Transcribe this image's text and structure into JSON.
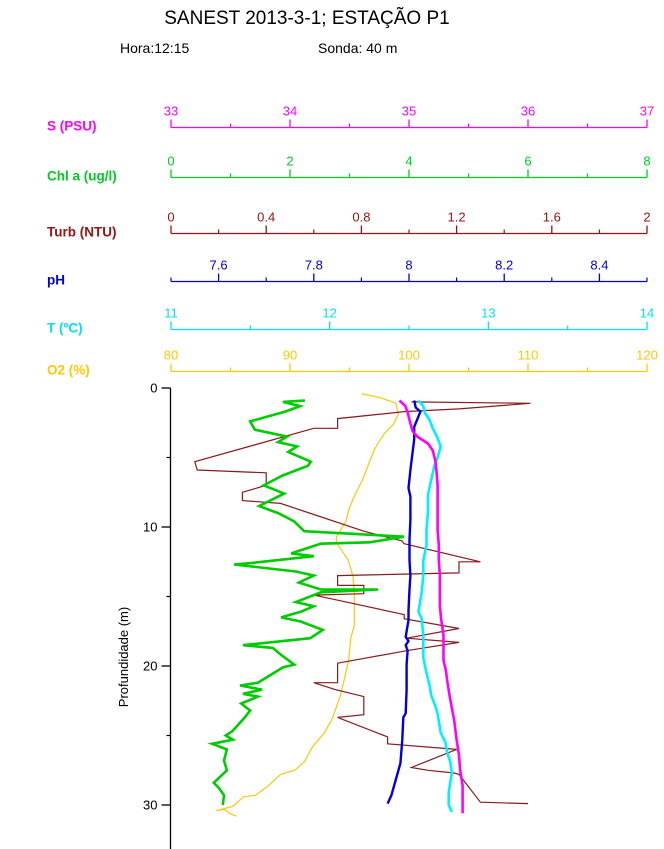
{
  "header": {
    "title": "SANEST 2013-3-1; ESTAÇÃO P1",
    "hora": "Hora:12:15",
    "sonda": "Sonda: 40 m"
  },
  "chart_data": {
    "type": "line",
    "subtype": "oceanographic-depth-profile",
    "title": "SANEST 2013-3-1; ESTAÇÃO P1",
    "ylabel": "Profundidade (m)",
    "grid": false,
    "legend_position": "left-stacked-axes",
    "depth_axis": {
      "min": 0,
      "max": 33,
      "major_ticks": [
        0,
        10,
        20,
        30
      ],
      "tick_labels": [
        "0",
        "10",
        "20",
        "30"
      ],
      "minor_ticks": [
        5,
        15,
        25
      ],
      "color": "#000000"
    },
    "axes": [
      {
        "id": "s",
        "label": "S (PSU)",
        "color": "#FF00FF",
        "min": 33,
        "max": 37,
        "major_ticks": [
          33,
          34,
          35,
          36,
          37
        ],
        "tick_labels": [
          "33",
          "34",
          "35",
          "36",
          "37"
        ],
        "minor_ticks": [
          33.5,
          34.5,
          35.5,
          36.5
        ]
      },
      {
        "id": "chl",
        "label": "Chl a (ug/l)",
        "color": "#00CC22",
        "min": 0,
        "max": 8,
        "major_ticks": [
          0,
          2,
          4,
          6,
          8
        ],
        "tick_labels": [
          "0",
          "2",
          "4",
          "6",
          "8"
        ],
        "minor_ticks": [
          1,
          3,
          5,
          7
        ]
      },
      {
        "id": "turb",
        "label": "Turb (NTU)",
        "color": "#991111",
        "min": 0,
        "max": 2,
        "major_ticks": [
          0,
          0.4,
          0.8,
          1.2,
          1.6,
          2
        ],
        "tick_labels": [
          "0",
          "0.4",
          "0.8",
          "1.2",
          "1.6",
          "2"
        ],
        "minor_ticks": [
          0.2,
          0.6,
          1.0,
          1.4,
          1.8
        ]
      },
      {
        "id": "ph",
        "label": "pH",
        "color": "#0000DD",
        "min": 7.5,
        "max": 8.5,
        "major_ticks": [
          7.6,
          7.8,
          8.0,
          8.2,
          8.4
        ],
        "tick_labels": [
          "7.6",
          "7.8",
          "8",
          "8.2",
          "8.4"
        ],
        "minor_ticks": [
          7.5,
          7.7,
          7.9,
          8.1,
          8.3,
          8.5
        ]
      },
      {
        "id": "t",
        "label": "T (ºC)",
        "color": "#00E0F5",
        "min": 11,
        "max": 14,
        "major_ticks": [
          11,
          12,
          13,
          14
        ],
        "tick_labels": [
          "11",
          "12",
          "13",
          "14"
        ],
        "minor_ticks": [
          11.5,
          12.5,
          13.5
        ]
      },
      {
        "id": "o2",
        "label": "O2 (%)",
        "color": "#FFC800",
        "min": 80,
        "max": 120,
        "major_ticks": [
          80,
          90,
          100,
          110,
          120
        ],
        "tick_labels": [
          "80",
          "90",
          "100",
          "110",
          "120"
        ],
        "minor_ticks": [
          85,
          95,
          105,
          115
        ]
      }
    ],
    "series": [
      {
        "id": "o2",
        "axis": "o2",
        "name": "O2 (%)",
        "color": "#FFC81E",
        "width": 1.3,
        "points": [
          [
            96.0,
            0.4
          ],
          [
            97.6,
            0.7
          ],
          [
            98.9,
            1.1
          ],
          [
            99.1,
            1.9
          ],
          [
            98.7,
            2.6
          ],
          [
            97.9,
            3.3
          ],
          [
            97.1,
            4.4
          ],
          [
            96.6,
            5.5
          ],
          [
            96.1,
            6.6
          ],
          [
            95.5,
            7.6
          ],
          [
            95.0,
            8.6
          ],
          [
            94.7,
            9.6
          ],
          [
            93.9,
            10.7
          ],
          [
            93.9,
            11.1
          ],
          [
            94.9,
            12.4
          ],
          [
            95.3,
            13.6
          ],
          [
            95.4,
            14.8
          ],
          [
            95.4,
            16.1
          ],
          [
            95.4,
            17.1
          ],
          [
            95.1,
            18.0
          ],
          [
            95.0,
            19.0
          ],
          [
            94.9,
            19.7
          ],
          [
            94.5,
            21.2
          ],
          [
            94.2,
            22.2
          ],
          [
            93.6,
            23.7
          ],
          [
            92.9,
            24.8
          ],
          [
            91.9,
            25.8
          ],
          [
            91.2,
            26.9
          ],
          [
            90.4,
            27.5
          ],
          [
            89.2,
            27.8
          ],
          [
            88.2,
            28.6
          ],
          [
            87.1,
            29.3
          ],
          [
            86.1,
            29.4
          ],
          [
            85.2,
            30.1
          ],
          [
            83.8,
            30.4
          ],
          [
            84.5,
            30.3
          ],
          [
            84.9,
            30.6
          ],
          [
            85.5,
            30.8
          ]
        ]
      },
      {
        "id": "turb",
        "axis": "turb",
        "name": "Turb (NTU)",
        "color": "#8B1A1A",
        "width": 1.2,
        "points": [
          [
            1.01,
            1.0
          ],
          [
            1.51,
            1.1
          ],
          [
            1.21,
            1.5
          ],
          [
            0.98,
            1.7
          ],
          [
            0.87,
            1.9
          ],
          [
            0.7,
            2.2
          ],
          [
            0.7,
            2.9
          ],
          [
            0.6,
            2.9
          ],
          [
            0.35,
            4.1
          ],
          [
            0.1,
            5.3
          ],
          [
            0.11,
            5.9
          ],
          [
            0.4,
            6.1
          ],
          [
            0.4,
            7.0
          ],
          [
            0.3,
            7.5
          ],
          [
            0.3,
            8.1
          ],
          [
            0.46,
            8.3
          ],
          [
            0.6,
            9.1
          ],
          [
            0.81,
            10.3
          ],
          [
            0.97,
            11.0
          ],
          [
            0.98,
            11.2
          ],
          [
            1.3,
            12.5
          ],
          [
            1.21,
            12.5
          ],
          [
            1.21,
            13.3
          ],
          [
            0.7,
            13.5
          ],
          [
            0.7,
            14.2
          ],
          [
            0.81,
            14.2
          ],
          [
            0.81,
            14.8
          ],
          [
            0.6,
            14.9
          ],
          [
            0.71,
            15.3
          ],
          [
            0.98,
            16.3
          ],
          [
            0.98,
            16.6
          ],
          [
            1.21,
            17.3
          ],
          [
            0.99,
            18.0
          ],
          [
            1.21,
            18.3
          ],
          [
            0.99,
            18.9
          ],
          [
            0.7,
            19.8
          ],
          [
            0.7,
            21.2
          ],
          [
            0.6,
            21.2
          ],
          [
            0.69,
            21.7
          ],
          [
            0.81,
            22.2
          ],
          [
            0.81,
            23.5
          ],
          [
            0.7,
            23.7
          ],
          [
            0.91,
            25.1
          ],
          [
            0.91,
            25.6
          ],
          [
            1.2,
            26.0
          ],
          [
            1.01,
            27.3
          ],
          [
            1.08,
            27.5
          ],
          [
            1.19,
            27.7
          ],
          [
            1.21,
            27.8
          ],
          [
            1.3,
            29.8
          ],
          [
            1.5,
            29.9
          ]
        ]
      },
      {
        "id": "chl",
        "axis": "chl",
        "name": "Chl a (ug/l)",
        "color": "#00CC00",
        "width": 2.6,
        "points": [
          [
            2.25,
            0.9
          ],
          [
            1.88,
            1.0
          ],
          [
            2.17,
            1.3
          ],
          [
            1.92,
            1.7
          ],
          [
            1.33,
            2.4
          ],
          [
            1.41,
            3.0
          ],
          [
            1.95,
            3.5
          ],
          [
            1.8,
            3.9
          ],
          [
            2.12,
            4.2
          ],
          [
            1.97,
            4.6
          ],
          [
            2.35,
            5.3
          ],
          [
            2.3,
            5.6
          ],
          [
            1.87,
            6.3
          ],
          [
            1.56,
            7.0
          ],
          [
            1.9,
            7.6
          ],
          [
            1.48,
            8.5
          ],
          [
            1.8,
            9.0
          ],
          [
            2.07,
            9.6
          ],
          [
            2.24,
            10.3
          ],
          [
            3.92,
            10.7
          ],
          [
            3.34,
            11.1
          ],
          [
            2.52,
            11.2
          ],
          [
            2.02,
            11.9
          ],
          [
            2.4,
            12.1
          ],
          [
            1.34,
            12.6
          ],
          [
            1.06,
            12.7
          ],
          [
            2.1,
            13.2
          ],
          [
            2.4,
            13.5
          ],
          [
            2.15,
            14.0
          ],
          [
            2.52,
            14.5
          ],
          [
            3.48,
            14.5
          ],
          [
            2.52,
            14.7
          ],
          [
            2.1,
            15.4
          ],
          [
            2.4,
            15.7
          ],
          [
            2.18,
            16.1
          ],
          [
            1.85,
            16.5
          ],
          [
            2.18,
            16.8
          ],
          [
            2.55,
            17.4
          ],
          [
            2.34,
            18.0
          ],
          [
            1.21,
            18.5
          ],
          [
            1.71,
            18.7
          ],
          [
            1.85,
            19.2
          ],
          [
            2.07,
            19.9
          ],
          [
            1.88,
            20.1
          ],
          [
            1.46,
            21.2
          ],
          [
            1.16,
            21.4
          ],
          [
            1.53,
            21.7
          ],
          [
            1.21,
            22.0
          ],
          [
            1.46,
            22.2
          ],
          [
            1.18,
            22.7
          ],
          [
            1.33,
            23.2
          ],
          [
            1.24,
            23.7
          ],
          [
            1.03,
            24.7
          ],
          [
            0.92,
            25.0
          ],
          [
            1.04,
            25.3
          ],
          [
            0.69,
            25.6
          ],
          [
            0.94,
            26.0
          ],
          [
            0.89,
            26.8
          ],
          [
            0.94,
            27.5
          ],
          [
            0.72,
            28.4
          ],
          [
            0.81,
            28.8
          ],
          [
            0.89,
            29.3
          ],
          [
            0.87,
            30.0
          ]
        ]
      },
      {
        "id": "ph",
        "axis": "ph",
        "name": "pH",
        "color": "#0000DD",
        "width": 2.4,
        "points": [
          [
            8.011,
            0.9
          ],
          [
            8.014,
            1.4
          ],
          [
            8.024,
            1.7
          ],
          [
            8.018,
            2.2
          ],
          [
            8.011,
            2.8
          ],
          [
            8.011,
            3.7
          ],
          [
            8.007,
            4.8
          ],
          [
            8.003,
            5.9
          ],
          [
            7.999,
            7.2
          ],
          [
            8.003,
            7.8
          ],
          [
            8.003,
            9.5
          ],
          [
            8.001,
            10.9
          ],
          [
            8.001,
            12.4
          ],
          [
            8.003,
            13.5
          ],
          [
            8.001,
            14.5
          ],
          [
            7.999,
            16.0
          ],
          [
            7.999,
            16.7
          ],
          [
            7.993,
            17.9
          ],
          [
            7.999,
            18.2
          ],
          [
            7.993,
            18.5
          ],
          [
            7.997,
            18.9
          ],
          [
            7.995,
            19.9
          ],
          [
            7.995,
            21.7
          ],
          [
            7.993,
            23.4
          ],
          [
            7.988,
            23.7
          ],
          [
            7.986,
            25.3
          ],
          [
            7.982,
            27.0
          ],
          [
            7.972,
            28.2
          ],
          [
            7.963,
            29.3
          ],
          [
            7.955,
            29.9
          ]
        ]
      },
      {
        "id": "t",
        "axis": "t",
        "name": "T (ºC)",
        "color": "#00F0FF",
        "width": 2.6,
        "points": [
          [
            12.56,
            0.9
          ],
          [
            12.59,
            1.3
          ],
          [
            12.6,
            1.8
          ],
          [
            12.63,
            2.3
          ],
          [
            12.65,
            2.9
          ],
          [
            12.68,
            3.6
          ],
          [
            12.7,
            4.2
          ],
          [
            12.68,
            5.0
          ],
          [
            12.66,
            5.6
          ],
          [
            12.64,
            6.6
          ],
          [
            12.62,
            7.7
          ],
          [
            12.62,
            8.9
          ],
          [
            12.61,
            10.2
          ],
          [
            12.61,
            11.3
          ],
          [
            12.59,
            12.4
          ],
          [
            12.59,
            13.5
          ],
          [
            12.58,
            14.7
          ],
          [
            12.56,
            16.1
          ],
          [
            12.58,
            16.6
          ],
          [
            12.59,
            17.8
          ],
          [
            12.59,
            18.9
          ],
          [
            12.59,
            19.4
          ],
          [
            12.61,
            20.5
          ],
          [
            12.63,
            21.4
          ],
          [
            12.64,
            22.1
          ],
          [
            12.66,
            22.7
          ],
          [
            12.68,
            23.4
          ],
          [
            12.7,
            24.8
          ],
          [
            12.73,
            25.5
          ],
          [
            12.74,
            26.2
          ],
          [
            12.76,
            26.9
          ],
          [
            12.77,
            27.7
          ],
          [
            12.75,
            29.1
          ],
          [
            12.75,
            30.0
          ],
          [
            12.77,
            30.5
          ]
        ]
      },
      {
        "id": "s",
        "axis": "s",
        "name": "S (PSU)",
        "color": "#FF00FF",
        "width": 2.6,
        "points": [
          [
            34.92,
            0.9
          ],
          [
            34.97,
            1.3
          ],
          [
            34.99,
            1.8
          ],
          [
            35.01,
            2.5
          ],
          [
            35.03,
            3.1
          ],
          [
            35.07,
            3.5
          ],
          [
            35.16,
            4.0
          ],
          [
            35.2,
            4.5
          ],
          [
            35.22,
            5.2
          ],
          [
            35.23,
            5.9
          ],
          [
            35.24,
            7.0
          ],
          [
            35.24,
            8.1
          ],
          [
            35.24,
            9.1
          ],
          [
            35.24,
            10.2
          ],
          [
            35.25,
            11.3
          ],
          [
            35.25,
            12.4
          ],
          [
            35.26,
            13.5
          ],
          [
            35.26,
            14.7
          ],
          [
            35.26,
            15.7
          ],
          [
            35.27,
            16.6
          ],
          [
            35.29,
            17.8
          ],
          [
            35.29,
            18.9
          ],
          [
            35.29,
            19.6
          ],
          [
            35.31,
            20.3
          ],
          [
            35.32,
            21.0
          ],
          [
            35.34,
            22.1
          ],
          [
            35.36,
            23.0
          ],
          [
            35.38,
            23.9
          ],
          [
            35.4,
            25.3
          ],
          [
            35.42,
            26.4
          ],
          [
            35.43,
            27.5
          ],
          [
            35.45,
            28.6
          ],
          [
            35.45,
            29.6
          ],
          [
            35.45,
            30.6
          ]
        ]
      }
    ]
  }
}
